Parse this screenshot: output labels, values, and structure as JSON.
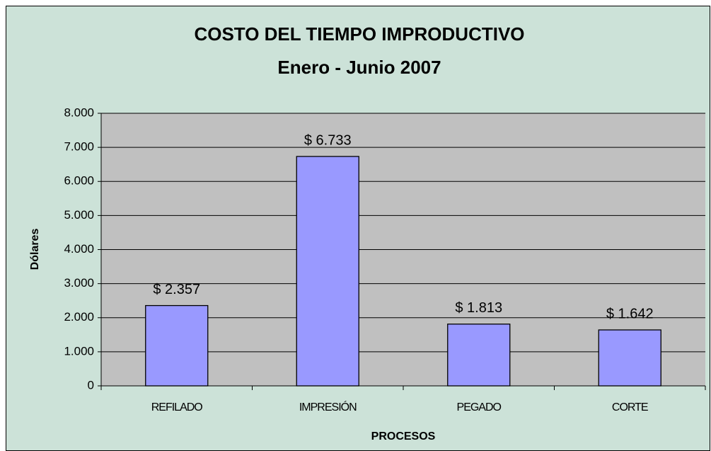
{
  "chart_data": {
    "type": "bar",
    "title": "COSTO DEL TIEMPO IMPRODUCTIVO",
    "subtitle": "Enero - Junio 2007",
    "y_label": "Dólares",
    "x_label": "PROCESOS",
    "categories": [
      "REFILADO",
      "IMPRESIÓN",
      "PEGADO",
      "CORTE"
    ],
    "values": [
      2357,
      6733,
      1813,
      1642
    ],
    "value_labels": [
      "$ 2.357",
      "$ 6.733",
      "$ 1.813",
      "$ 1.642"
    ],
    "color": "#9999ff",
    "ylim": [
      0,
      8000
    ],
    "yticks": [
      0,
      {
        "value": 1000,
        "label": "1.000"
      },
      {
        "value": 2000,
        "label": "2.000"
      },
      {
        "value": 3000,
        "label": "3.000"
      },
      {
        "value": 4000,
        "label": "4.000"
      },
      {
        "value": 5000,
        "label": "5.000"
      },
      {
        "value": 6000,
        "label": "6.000"
      },
      {
        "value": 7000,
        "label": "7.000"
      },
      {
        "value": 8000,
        "label": "8.000"
      }
    ],
    "grid": true
  }
}
